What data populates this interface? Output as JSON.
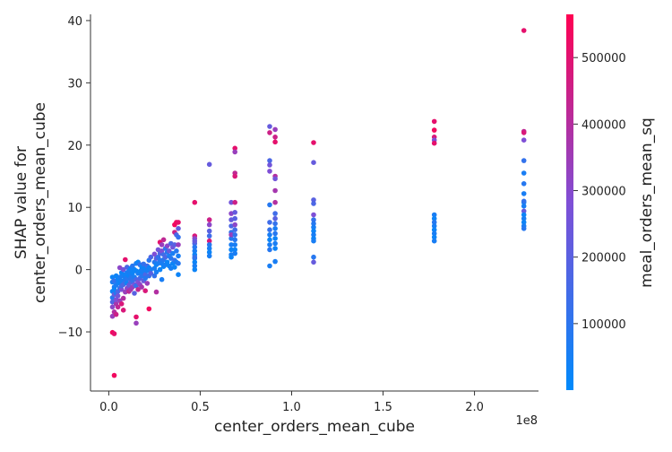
{
  "chart_data": {
    "type": "scatter",
    "title": "",
    "xlabel": "center_orders_mean_cube",
    "ylabel_lines": [
      "SHAP value for",
      "center_orders_mean_cube"
    ],
    "x_offset_text": "1e8",
    "xlim": [
      -0.1,
      2.35
    ],
    "ylim": [
      -19.5,
      41
    ],
    "x_ticks": [
      0.0,
      0.5,
      1.0,
      1.5,
      2.0
    ],
    "x_tick_labels": [
      "0.0",
      "0.5",
      "1.0",
      "1.5",
      "2.0"
    ],
    "y_ticks": [
      -10,
      0,
      10,
      20,
      30,
      40
    ],
    "y_tick_labels": [
      "−10",
      "0",
      "10",
      "20",
      "30",
      "40"
    ],
    "colorbar": {
      "label": "meal_orders_mean_sq",
      "range": [
        0,
        565000
      ],
      "ticks": [
        100000,
        200000,
        300000,
        400000,
        500000
      ],
      "tick_labels": [
        "100000",
        "200000",
        "300000",
        "400000",
        "500000"
      ],
      "colors": [
        "#008afb",
        "#7f4fd6",
        "#ff0052"
      ]
    },
    "points": [
      [
        0.02,
        -3.5,
        0.05
      ],
      [
        0.02,
        -2.0,
        0.1
      ],
      [
        0.02,
        -4.5,
        0.15
      ],
      [
        0.02,
        -6.0,
        0.55
      ],
      [
        0.02,
        -7.5,
        0.6
      ],
      [
        0.02,
        -10.1,
        0.95
      ],
      [
        0.02,
        -1.2,
        0.05
      ],
      [
        0.02,
        -5.2,
        0.3
      ],
      [
        0.03,
        -2.8,
        0.1
      ],
      [
        0.03,
        -4.0,
        0.4
      ],
      [
        0.03,
        -6.8,
        0.7
      ],
      [
        0.03,
        -10.3,
        0.9
      ],
      [
        0.03,
        -17.0,
        0.95
      ],
      [
        0.03,
        -3.2,
        0.05
      ],
      [
        0.03,
        -1.8,
        0.2
      ],
      [
        0.04,
        -2.5,
        0.1
      ],
      [
        0.04,
        -5.5,
        0.65
      ],
      [
        0.04,
        -7.2,
        0.8
      ],
      [
        0.04,
        -3.8,
        0.15
      ],
      [
        0.04,
        -1.0,
        0.05
      ],
      [
        0.04,
        -4.8,
        0.5
      ],
      [
        0.05,
        -2.0,
        0.1
      ],
      [
        0.05,
        -3.5,
        0.3
      ],
      [
        0.05,
        -6.0,
        0.75
      ],
      [
        0.05,
        -1.5,
        0.05
      ],
      [
        0.05,
        -4.2,
        0.45
      ],
      [
        0.06,
        -1.2,
        0.1
      ],
      [
        0.06,
        -3.0,
        0.2
      ],
      [
        0.06,
        -5.0,
        0.6
      ],
      [
        0.06,
        -2.2,
        0.05
      ],
      [
        0.06,
        0.3,
        0.55
      ],
      [
        0.07,
        -1.8,
        0.1
      ],
      [
        0.07,
        -3.2,
        0.5
      ],
      [
        0.07,
        -5.5,
        0.85
      ],
      [
        0.07,
        -0.5,
        0.05
      ],
      [
        0.07,
        -2.6,
        0.25
      ],
      [
        0.08,
        -1.0,
        0.1
      ],
      [
        0.08,
        -2.4,
        0.3
      ],
      [
        0.08,
        -4.6,
        0.7
      ],
      [
        0.08,
        -6.5,
        0.85
      ],
      [
        0.08,
        0.0,
        0.45
      ],
      [
        0.09,
        -0.8,
        0.05
      ],
      [
        0.09,
        -2.0,
        0.2
      ],
      [
        0.09,
        -3.6,
        0.6
      ],
      [
        0.09,
        1.6,
        0.9
      ],
      [
        0.09,
        -1.4,
        0.1
      ],
      [
        0.1,
        -0.5,
        0.1
      ],
      [
        0.1,
        -1.5,
        0.15
      ],
      [
        0.1,
        -3.0,
        0.55
      ],
      [
        0.1,
        -2.2,
        0.05
      ],
      [
        0.1,
        0.4,
        0.3
      ],
      [
        0.11,
        -1.0,
        0.05
      ],
      [
        0.11,
        -2.5,
        0.4
      ],
      [
        0.11,
        -0.2,
        0.1
      ],
      [
        0.11,
        -3.5,
        0.75
      ],
      [
        0.12,
        -0.8,
        0.1
      ],
      [
        0.12,
        -2.0,
        0.35
      ],
      [
        0.12,
        0.2,
        0.05
      ],
      [
        0.12,
        -3.2,
        0.65
      ],
      [
        0.12,
        -1.4,
        0.15
      ],
      [
        0.13,
        -0.5,
        0.05
      ],
      [
        0.13,
        -1.8,
        0.2
      ],
      [
        0.13,
        0.6,
        0.15
      ],
      [
        0.13,
        -2.8,
        0.6
      ],
      [
        0.14,
        -1.2,
        0.1
      ],
      [
        0.14,
        -2.4,
        0.45
      ],
      [
        0.14,
        0.0,
        0.05
      ],
      [
        0.14,
        -3.8,
        0.35
      ],
      [
        0.15,
        -0.2,
        0.05
      ],
      [
        0.15,
        -1.6,
        0.3
      ],
      [
        0.15,
        -7.6,
        0.9
      ],
      [
        0.15,
        -8.6,
        0.6
      ],
      [
        0.15,
        1.0,
        0.1
      ],
      [
        0.15,
        -2.6,
        0.2
      ],
      [
        0.16,
        -0.6,
        0.1
      ],
      [
        0.16,
        -2.0,
        0.5
      ],
      [
        0.16,
        1.2,
        0.05
      ],
      [
        0.16,
        -3.2,
        0.75
      ],
      [
        0.17,
        -0.3,
        0.05
      ],
      [
        0.17,
        -1.4,
        0.3
      ],
      [
        0.17,
        0.8,
        0.2
      ],
      [
        0.17,
        -2.4,
        0.55
      ],
      [
        0.18,
        0.0,
        0.1
      ],
      [
        0.18,
        -1.0,
        0.15
      ],
      [
        0.18,
        -2.8,
        0.65
      ],
      [
        0.18,
        0.5,
        0.05
      ],
      [
        0.19,
        -0.5,
        0.1
      ],
      [
        0.19,
        -1.8,
        0.4
      ],
      [
        0.19,
        0.9,
        0.2
      ],
      [
        0.2,
        0.2,
        0.05
      ],
      [
        0.2,
        -0.8,
        0.3
      ],
      [
        0.2,
        -3.4,
        0.85
      ],
      [
        0.2,
        -1.4,
        0.15
      ],
      [
        0.21,
        -0.2,
        0.1
      ],
      [
        0.21,
        0.6,
        0.25
      ],
      [
        0.21,
        -2.2,
        0.6
      ],
      [
        0.22,
        0.3,
        0.05
      ],
      [
        0.22,
        -1.0,
        0.2
      ],
      [
        0.22,
        1.5,
        0.15
      ],
      [
        0.22,
        -6.3,
        0.95
      ],
      [
        0.23,
        0.0,
        0.1
      ],
      [
        0.23,
        -0.6,
        0.35
      ],
      [
        0.23,
        2.0,
        0.3
      ],
      [
        0.25,
        1.2,
        0.15
      ],
      [
        0.25,
        2.5,
        0.5
      ],
      [
        0.25,
        0.2,
        0.1
      ],
      [
        0.25,
        -1.0,
        0.2
      ],
      [
        0.26,
        0.8,
        0.05
      ],
      [
        0.26,
        1.8,
        0.35
      ],
      [
        0.26,
        -3.6,
        0.7
      ],
      [
        0.26,
        -0.4,
        0.1
      ],
      [
        0.27,
        2.0,
        0.2
      ],
      [
        0.27,
        1.0,
        0.1
      ],
      [
        0.27,
        3.2,
        0.45
      ],
      [
        0.28,
        1.5,
        0.15
      ],
      [
        0.28,
        0.0,
        0.05
      ],
      [
        0.28,
        4.4,
        0.9
      ],
      [
        0.28,
        2.6,
        0.3
      ],
      [
        0.29,
        1.0,
        0.1
      ],
      [
        0.29,
        3.0,
        0.5
      ],
      [
        0.29,
        -1.6,
        0.1
      ],
      [
        0.29,
        4.0,
        0.6
      ],
      [
        0.3,
        2.4,
        0.25
      ],
      [
        0.3,
        0.5,
        0.05
      ],
      [
        0.3,
        4.8,
        0.75
      ],
      [
        0.3,
        1.6,
        0.15
      ],
      [
        0.31,
        2.0,
        0.3
      ],
      [
        0.31,
        3.4,
        0.2
      ],
      [
        0.31,
        0.8,
        0.1
      ],
      [
        0.32,
        2.8,
        0.15
      ],
      [
        0.32,
        1.2,
        0.05
      ],
      [
        0.32,
        3.8,
        0.55
      ],
      [
        0.33,
        2.2,
        0.1
      ],
      [
        0.33,
        0.6,
        0.05
      ],
      [
        0.33,
        3.0,
        0.4
      ],
      [
        0.34,
        1.8,
        0.15
      ],
      [
        0.34,
        4.2,
        0.3
      ],
      [
        0.34,
        0.2,
        0.1
      ],
      [
        0.35,
        2.6,
        0.1
      ],
      [
        0.35,
        1.0,
        0.05
      ],
      [
        0.35,
        3.6,
        0.45
      ],
      [
        0.36,
        1.5,
        0.2
      ],
      [
        0.36,
        6.0,
        0.8
      ],
      [
        0.36,
        7.2,
        0.95
      ],
      [
        0.36,
        4.0,
        0.35
      ],
      [
        0.36,
        0.4,
        0.05
      ],
      [
        0.37,
        7.6,
        0.95
      ],
      [
        0.37,
        5.6,
        0.3
      ],
      [
        0.37,
        3.0,
        0.15
      ],
      [
        0.37,
        1.2,
        0.1
      ],
      [
        0.38,
        7.6,
        0.9
      ],
      [
        0.38,
        5.2,
        0.2
      ],
      [
        0.38,
        4.0,
        0.6
      ],
      [
        0.38,
        2.2,
        0.1
      ],
      [
        0.38,
        -0.8,
        0.05
      ],
      [
        0.38,
        6.6,
        0.4
      ],
      [
        0.38,
        1.0,
        0.15
      ],
      [
        0.47,
        10.8,
        0.9
      ],
      [
        0.47,
        5.4,
        0.85
      ],
      [
        0.47,
        5.0,
        0.55
      ],
      [
        0.47,
        4.2,
        0.3
      ],
      [
        0.47,
        3.6,
        0.15
      ],
      [
        0.47,
        3.0,
        0.1
      ],
      [
        0.47,
        2.4,
        0.05
      ],
      [
        0.47,
        1.8,
        0.1
      ],
      [
        0.47,
        1.2,
        0.05
      ],
      [
        0.47,
        0.6,
        0.1
      ],
      [
        0.47,
        0.0,
        0.05
      ],
      [
        0.47,
        4.6,
        0.4
      ],
      [
        0.47,
        2.0,
        0.2
      ],
      [
        0.55,
        16.9,
        0.4
      ],
      [
        0.55,
        8.0,
        0.8
      ],
      [
        0.55,
        7.2,
        0.55
      ],
      [
        0.55,
        6.2,
        0.35
      ],
      [
        0.55,
        5.4,
        0.25
      ],
      [
        0.55,
        4.6,
        0.85
      ],
      [
        0.55,
        4.0,
        0.15
      ],
      [
        0.55,
        3.4,
        0.1
      ],
      [
        0.55,
        2.8,
        0.05
      ],
      [
        0.55,
        2.2,
        0.1
      ],
      [
        0.67,
        10.8,
        0.45
      ],
      [
        0.67,
        9.0,
        0.55
      ],
      [
        0.67,
        8.0,
        0.4
      ],
      [
        0.67,
        7.0,
        0.3
      ],
      [
        0.67,
        6.0,
        0.2
      ],
      [
        0.67,
        5.0,
        0.15
      ],
      [
        0.67,
        4.0,
        0.1
      ],
      [
        0.67,
        3.2,
        0.05
      ],
      [
        0.67,
        2.4,
        0.1
      ],
      [
        0.67,
        2.0,
        0.05
      ],
      [
        0.67,
        5.6,
        0.6
      ],
      [
        0.69,
        19.5,
        0.9
      ],
      [
        0.69,
        18.9,
        0.6
      ],
      [
        0.69,
        15.5,
        0.75
      ],
      [
        0.69,
        15.0,
        0.85
      ],
      [
        0.69,
        10.8,
        0.8
      ],
      [
        0.69,
        9.2,
        0.4
      ],
      [
        0.69,
        8.2,
        0.35
      ],
      [
        0.69,
        7.2,
        0.55
      ],
      [
        0.69,
        6.4,
        0.25
      ],
      [
        0.69,
        5.6,
        0.2
      ],
      [
        0.69,
        4.8,
        0.15
      ],
      [
        0.69,
        4.0,
        0.1
      ],
      [
        0.69,
        3.2,
        0.05
      ],
      [
        0.69,
        2.6,
        0.1
      ],
      [
        0.88,
        23.0,
        0.4
      ],
      [
        0.88,
        22.0,
        0.8
      ],
      [
        0.88,
        17.5,
        0.3
      ],
      [
        0.88,
        16.8,
        0.45
      ],
      [
        0.88,
        15.8,
        0.5
      ],
      [
        0.88,
        10.4,
        0.15
      ],
      [
        0.88,
        7.6,
        0.25
      ],
      [
        0.88,
        6.4,
        0.2
      ],
      [
        0.88,
        5.6,
        0.1
      ],
      [
        0.88,
        4.8,
        0.05
      ],
      [
        0.88,
        4.0,
        0.1
      ],
      [
        0.88,
        3.2,
        0.15
      ],
      [
        0.88,
        0.6,
        0.1
      ],
      [
        0.91,
        22.5,
        0.6
      ],
      [
        0.91,
        21.3,
        0.8
      ],
      [
        0.91,
        20.5,
        0.9
      ],
      [
        0.91,
        15.0,
        0.7
      ],
      [
        0.91,
        14.6,
        0.45
      ],
      [
        0.91,
        12.7,
        0.65
      ],
      [
        0.91,
        10.8,
        0.7
      ],
      [
        0.91,
        9.0,
        0.25
      ],
      [
        0.91,
        8.2,
        0.35
      ],
      [
        0.91,
        7.4,
        0.2
      ],
      [
        0.91,
        6.6,
        0.1
      ],
      [
        0.91,
        5.8,
        0.15
      ],
      [
        0.91,
        5.0,
        0.05
      ],
      [
        0.91,
        4.2,
        0.1
      ],
      [
        0.91,
        3.4,
        0.05
      ],
      [
        0.91,
        1.3,
        0.1
      ],
      [
        1.12,
        20.4,
        0.9
      ],
      [
        1.12,
        17.2,
        0.4
      ],
      [
        1.12,
        11.2,
        0.35
      ],
      [
        1.12,
        10.6,
        0.3
      ],
      [
        1.12,
        8.8,
        0.5
      ],
      [
        1.12,
        8.0,
        0.2
      ],
      [
        1.12,
        7.4,
        0.15
      ],
      [
        1.12,
        6.8,
        0.1
      ],
      [
        1.12,
        6.2,
        0.05
      ],
      [
        1.12,
        5.6,
        0.1
      ],
      [
        1.12,
        5.0,
        0.05
      ],
      [
        1.12,
        4.6,
        0.1
      ],
      [
        1.12,
        2.0,
        0.15
      ],
      [
        1.12,
        1.2,
        0.4
      ],
      [
        1.78,
        23.8,
        0.9
      ],
      [
        1.78,
        22.4,
        0.95
      ],
      [
        1.78,
        21.3,
        0.85
      ],
      [
        1.78,
        20.8,
        0.5
      ],
      [
        1.78,
        20.3,
        0.9
      ],
      [
        1.78,
        8.8,
        0.1
      ],
      [
        1.78,
        8.2,
        0.05
      ],
      [
        1.78,
        7.6,
        0.15
      ],
      [
        1.78,
        7.0,
        0.1
      ],
      [
        1.78,
        6.4,
        0.05
      ],
      [
        1.78,
        5.8,
        0.1
      ],
      [
        1.78,
        5.2,
        0.05
      ],
      [
        1.78,
        4.6,
        0.1
      ],
      [
        2.27,
        38.4,
        0.9
      ],
      [
        2.27,
        22.2,
        0.75
      ],
      [
        2.27,
        22.0,
        0.85
      ],
      [
        2.27,
        20.8,
        0.5
      ],
      [
        2.27,
        17.5,
        0.2
      ],
      [
        2.27,
        15.5,
        0.1
      ],
      [
        2.27,
        13.8,
        0.15
      ],
      [
        2.27,
        12.2,
        0.1
      ],
      [
        2.27,
        10.8,
        0.05
      ],
      [
        2.27,
        10.2,
        0.1
      ],
      [
        2.27,
        9.4,
        0.4
      ],
      [
        2.27,
        8.8,
        0.05
      ],
      [
        2.27,
        8.2,
        0.1
      ],
      [
        2.27,
        7.6,
        0.05
      ],
      [
        2.27,
        7.0,
        0.1
      ],
      [
        2.27,
        6.6,
        0.15
      ],
      [
        2.27,
        11.0,
        0.2
      ]
    ]
  }
}
